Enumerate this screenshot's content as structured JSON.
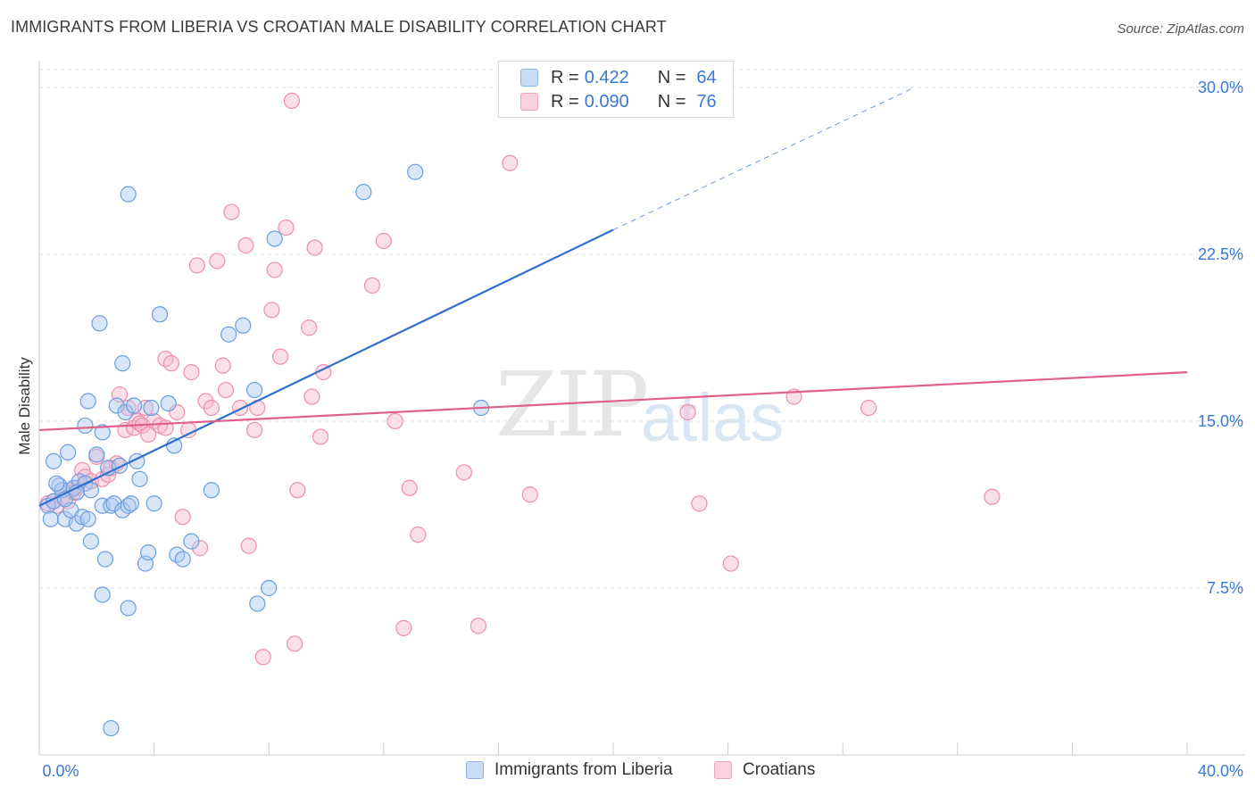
{
  "header": {
    "title": "IMMIGRANTS FROM LIBERIA VS CROATIAN MALE DISABILITY CORRELATION CHART",
    "source": "Source: ZipAtlas.com"
  },
  "watermark": {
    "zip": "ZIP",
    "atlas": "atlas"
  },
  "legend": {
    "series1": {
      "r_label": "R =",
      "r_value": "0.422",
      "n_label": "N =",
      "n_value": "64",
      "color": "#aac8f0"
    },
    "series2": {
      "r_label": "R =",
      "r_value": "0.090",
      "n_label": "N =",
      "n_value": "76",
      "color": "#f7b8cb"
    }
  },
  "bottom_legend": {
    "series1": "Immigrants from Liberia",
    "series2": "Croatians"
  },
  "colors": {
    "blue_fill": "#aac8f0",
    "blue_stroke": "#6a9ee0",
    "blue_line": "#2f6fd0",
    "pink_fill": "#f7b8cb",
    "pink_stroke": "#ee8fab",
    "pink_line": "#e0608a",
    "tick_text": "#3a78d6",
    "grid": "#e2e2e2"
  },
  "chart_data": {
    "type": "scatter",
    "title": "IMMIGRANTS FROM LIBERIA VS CROATIAN MALE DISABILITY CORRELATION CHART",
    "xlabel": "",
    "ylabel": "Male Disability",
    "xlim": [
      0,
      40
    ],
    "ylim": [
      0,
      30.8
    ],
    "x_tick_labels": [
      "0.0%",
      "40.0%"
    ],
    "y_ticks": [
      7.5,
      15.0,
      22.5,
      30.0
    ],
    "y_tick_labels": [
      "7.5%",
      "15.0%",
      "22.5%",
      "30.0%"
    ],
    "grid": true,
    "legend_position": "top-center",
    "series": [
      {
        "name": "Immigrants from Liberia",
        "R": 0.422,
        "N": 64,
        "trend": {
          "x0": 0,
          "y0": 11.2,
          "x1": 20,
          "y1": 23.6,
          "dashed_to_x": 30.5,
          "dashed_to_y": 30.0
        },
        "points": [
          [
            0.3,
            11.2
          ],
          [
            0.4,
            10.6
          ],
          [
            0.5,
            11.4
          ],
          [
            0.7,
            12.1
          ],
          [
            0.8,
            11.9
          ],
          [
            0.9,
            10.6
          ],
          [
            1.0,
            13.6
          ],
          [
            1.1,
            11.0
          ],
          [
            1.2,
            12.0
          ],
          [
            1.3,
            10.4
          ],
          [
            1.4,
            12.3
          ],
          [
            1.5,
            10.7
          ],
          [
            1.6,
            12.2
          ],
          [
            1.7,
            10.6
          ],
          [
            1.8,
            11.9
          ],
          [
            1.6,
            14.8
          ],
          [
            1.7,
            15.9
          ],
          [
            2.0,
            13.5
          ],
          [
            1.8,
            9.6
          ],
          [
            2.2,
            11.2
          ],
          [
            2.3,
            8.8
          ],
          [
            2.2,
            14.5
          ],
          [
            2.4,
            12.9
          ],
          [
            2.5,
            11.2
          ],
          [
            2.6,
            11.3
          ],
          [
            2.7,
            15.7
          ],
          [
            2.8,
            13.0
          ],
          [
            2.9,
            17.6
          ],
          [
            2.9,
            11.0
          ],
          [
            3.0,
            15.4
          ],
          [
            3.1,
            11.2
          ],
          [
            3.1,
            25.2
          ],
          [
            3.2,
            11.3
          ],
          [
            3.3,
            15.7
          ],
          [
            3.4,
            13.2
          ],
          [
            3.5,
            12.4
          ],
          [
            3.7,
            8.6
          ],
          [
            3.8,
            9.1
          ],
          [
            3.9,
            15.6
          ],
          [
            4.0,
            11.3
          ],
          [
            4.2,
            19.8
          ],
          [
            4.5,
            15.8
          ],
          [
            4.7,
            13.9
          ],
          [
            4.8,
            9.0
          ],
          [
            5.0,
            8.8
          ],
          [
            5.3,
            9.6
          ],
          [
            6.0,
            11.9
          ],
          [
            6.6,
            18.9
          ],
          [
            7.1,
            19.3
          ],
          [
            7.5,
            16.4
          ],
          [
            7.6,
            6.8
          ],
          [
            8.0,
            7.5
          ],
          [
            8.2,
            23.2
          ],
          [
            11.3,
            25.3
          ],
          [
            13.1,
            26.2
          ],
          [
            15.4,
            15.6
          ],
          [
            2.1,
            19.4
          ],
          [
            2.2,
            7.2
          ],
          [
            3.1,
            6.6
          ],
          [
            2.5,
            1.2
          ],
          [
            0.6,
            12.2
          ],
          [
            0.9,
            11.5
          ],
          [
            1.3,
            11.8
          ],
          [
            0.5,
            13.2
          ]
        ]
      },
      {
        "name": "Croatians",
        "R": 0.09,
        "N": 76,
        "trend": {
          "x0": 0,
          "y0": 14.6,
          "x1": 40,
          "y1": 17.2
        },
        "points": [
          [
            0.3,
            11.3
          ],
          [
            0.5,
            11.4
          ],
          [
            0.6,
            11.2
          ],
          [
            0.8,
            11.6
          ],
          [
            1.0,
            11.4
          ],
          [
            1.2,
            11.8
          ],
          [
            1.3,
            12.0
          ],
          [
            1.5,
            12.8
          ],
          [
            1.6,
            12.5
          ],
          [
            1.8,
            12.3
          ],
          [
            2.0,
            13.4
          ],
          [
            2.2,
            12.4
          ],
          [
            2.4,
            12.6
          ],
          [
            2.5,
            12.9
          ],
          [
            2.7,
            13.1
          ],
          [
            2.8,
            16.2
          ],
          [
            3.0,
            14.6
          ],
          [
            3.1,
            15.6
          ],
          [
            3.3,
            14.7
          ],
          [
            3.4,
            15.0
          ],
          [
            3.5,
            14.9
          ],
          [
            3.6,
            14.8
          ],
          [
            3.7,
            15.6
          ],
          [
            3.8,
            14.4
          ],
          [
            4.0,
            15.0
          ],
          [
            4.2,
            14.8
          ],
          [
            4.4,
            14.7
          ],
          [
            4.4,
            17.8
          ],
          [
            4.6,
            17.6
          ],
          [
            4.8,
            15.4
          ],
          [
            5.0,
            10.7
          ],
          [
            5.2,
            14.6
          ],
          [
            5.3,
            17.2
          ],
          [
            5.5,
            22.0
          ],
          [
            5.6,
            9.3
          ],
          [
            5.8,
            15.9
          ],
          [
            6.0,
            15.6
          ],
          [
            6.2,
            22.2
          ],
          [
            6.4,
            17.5
          ],
          [
            6.5,
            16.4
          ],
          [
            6.7,
            24.4
          ],
          [
            7.0,
            15.6
          ],
          [
            7.2,
            22.9
          ],
          [
            7.3,
            9.4
          ],
          [
            7.5,
            14.6
          ],
          [
            7.6,
            15.6
          ],
          [
            7.8,
            4.4
          ],
          [
            8.1,
            20.0
          ],
          [
            8.2,
            21.8
          ],
          [
            8.4,
            17.9
          ],
          [
            8.6,
            23.7
          ],
          [
            8.9,
            5.0
          ],
          [
            9.0,
            11.9
          ],
          [
            9.4,
            19.2
          ],
          [
            9.5,
            16.1
          ],
          [
            9.8,
            14.3
          ],
          [
            9.9,
            17.2
          ],
          [
            8.8,
            29.4
          ],
          [
            9.6,
            22.8
          ],
          [
            11.6,
            21.1
          ],
          [
            12.0,
            23.1
          ],
          [
            12.4,
            15.0
          ],
          [
            12.7,
            5.7
          ],
          [
            12.9,
            12.0
          ],
          [
            13.2,
            9.9
          ],
          [
            14.8,
            12.7
          ],
          [
            15.3,
            5.8
          ],
          [
            16.4,
            26.6
          ],
          [
            17.1,
            11.7
          ],
          [
            22.6,
            15.4
          ],
          [
            23.0,
            11.3
          ],
          [
            24.1,
            8.6
          ],
          [
            26.3,
            16.1
          ],
          [
            28.9,
            15.6
          ],
          [
            33.2,
            11.6
          ],
          [
            1.1,
            11.9
          ]
        ]
      }
    ]
  }
}
